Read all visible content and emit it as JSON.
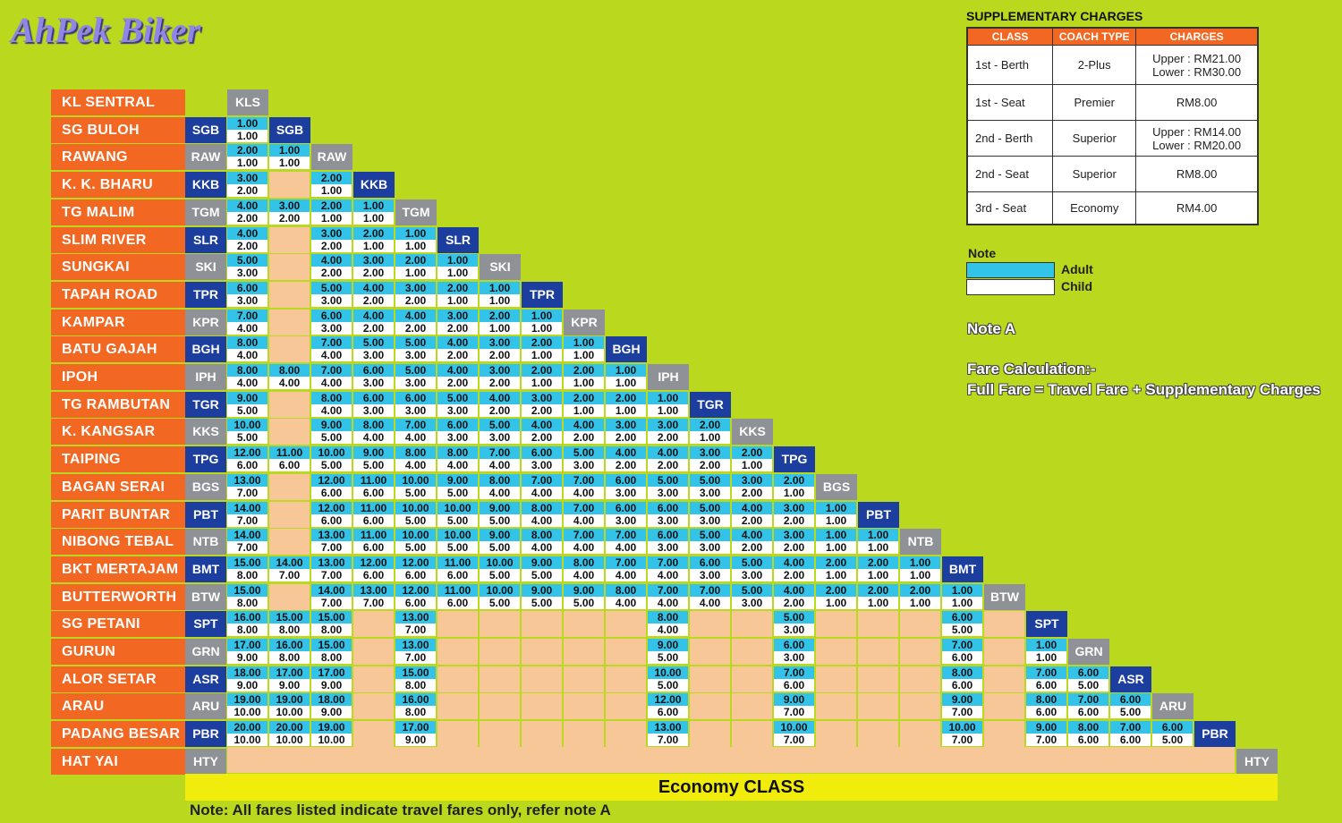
{
  "brand": "AhPek Biker",
  "stations": [
    {
      "name": "KL  SENTRAL",
      "code": "KLS"
    },
    {
      "name": "SG BULOH",
      "code": "SGB"
    },
    {
      "name": "RAWANG",
      "code": "RAW"
    },
    {
      "name": "K. K. BHARU",
      "code": "KKB"
    },
    {
      "name": "TG MALIM",
      "code": "TGM"
    },
    {
      "name": "SLIM RIVER",
      "code": "SLR"
    },
    {
      "name": "SUNGKAI",
      "code": "SKI"
    },
    {
      "name": "TAPAH ROAD",
      "code": "TPR"
    },
    {
      "name": "KAMPAR",
      "code": "KPR"
    },
    {
      "name": "BATU GAJAH",
      "code": "BGH"
    },
    {
      "name": "IPOH",
      "code": "IPH"
    },
    {
      "name": "TG RAMBUTAN",
      "code": "TGR"
    },
    {
      "name": "K. KANGSAR",
      "code": "KKS"
    },
    {
      "name": "TAIPING",
      "code": "TPG"
    },
    {
      "name": "BAGAN SERAI",
      "code": "BGS"
    },
    {
      "name": "PARIT BUNTAR",
      "code": "PBT"
    },
    {
      "name": "NIBONG TEBAL",
      "code": "NTB"
    },
    {
      "name": "BKT MERTAJAM",
      "code": "BMT"
    },
    {
      "name": "BUTTERWORTH",
      "code": "BTW"
    },
    {
      "name": "SG PETANI",
      "code": "SPT"
    },
    {
      "name": "GURUN",
      "code": "GRN"
    },
    {
      "name": "ALOR SETAR",
      "code": "ASR"
    },
    {
      "name": "ARAU",
      "code": "ARU"
    },
    {
      "name": "PADANG BESAR",
      "code": "PBR"
    },
    {
      "name": "HAT YAI",
      "code": "HTY"
    }
  ],
  "fares": [
    [],
    [
      [
        "1.00",
        "1.00"
      ]
    ],
    [
      [
        "2.00",
        "1.00"
      ],
      [
        "1.00",
        "1.00"
      ]
    ],
    [
      [
        "3.00",
        "2.00"
      ],
      null,
      [
        "2.00",
        "1.00"
      ]
    ],
    [
      [
        "4.00",
        "2.00"
      ],
      [
        "3.00",
        "2.00"
      ],
      [
        "2.00",
        "1.00"
      ],
      [
        "1.00",
        "1.00"
      ]
    ],
    [
      [
        "4.00",
        "2.00"
      ],
      null,
      [
        "3.00",
        "2.00"
      ],
      [
        "2.00",
        "1.00"
      ],
      [
        "1.00",
        "1.00"
      ]
    ],
    [
      [
        "5.00",
        "3.00"
      ],
      null,
      [
        "4.00",
        "2.00"
      ],
      [
        "3.00",
        "2.00"
      ],
      [
        "2.00",
        "1.00"
      ],
      [
        "1.00",
        "1.00"
      ]
    ],
    [
      [
        "6.00",
        "3.00"
      ],
      null,
      [
        "5.00",
        "3.00"
      ],
      [
        "4.00",
        "2.00"
      ],
      [
        "3.00",
        "2.00"
      ],
      [
        "2.00",
        "1.00"
      ],
      [
        "1.00",
        "1.00"
      ]
    ],
    [
      [
        "7.00",
        "4.00"
      ],
      null,
      [
        "6.00",
        "3.00"
      ],
      [
        "4.00",
        "2.00"
      ],
      [
        "4.00",
        "2.00"
      ],
      [
        "3.00",
        "2.00"
      ],
      [
        "2.00",
        "1.00"
      ],
      [
        "1.00",
        "1.00"
      ]
    ],
    [
      [
        "8.00",
        "4.00"
      ],
      null,
      [
        "7.00",
        "4.00"
      ],
      [
        "5.00",
        "3.00"
      ],
      [
        "5.00",
        "3.00"
      ],
      [
        "4.00",
        "2.00"
      ],
      [
        "3.00",
        "2.00"
      ],
      [
        "2.00",
        "1.00"
      ],
      [
        "1.00",
        "1.00"
      ]
    ],
    [
      [
        "8.00",
        "4.00"
      ],
      [
        "8.00",
        "4.00"
      ],
      [
        "7.00",
        "4.00"
      ],
      [
        "6.00",
        "3.00"
      ],
      [
        "5.00",
        "3.00"
      ],
      [
        "4.00",
        "2.00"
      ],
      [
        "3.00",
        "2.00"
      ],
      [
        "2.00",
        "1.00"
      ],
      [
        "2.00",
        "1.00"
      ],
      [
        "1.00",
        "1.00"
      ]
    ],
    [
      [
        "9.00",
        "5.00"
      ],
      null,
      [
        "8.00",
        "4.00"
      ],
      [
        "6.00",
        "3.00"
      ],
      [
        "6.00",
        "3.00"
      ],
      [
        "5.00",
        "3.00"
      ],
      [
        "4.00",
        "2.00"
      ],
      [
        "3.00",
        "2.00"
      ],
      [
        "2.00",
        "1.00"
      ],
      [
        "2.00",
        "1.00"
      ],
      [
        "1.00",
        "1.00"
      ]
    ],
    [
      [
        "10.00",
        "5.00"
      ],
      null,
      [
        "9.00",
        "5.00"
      ],
      [
        "8.00",
        "4.00"
      ],
      [
        "7.00",
        "4.00"
      ],
      [
        "6.00",
        "3.00"
      ],
      [
        "5.00",
        "3.00"
      ],
      [
        "4.00",
        "2.00"
      ],
      [
        "4.00",
        "2.00"
      ],
      [
        "3.00",
        "2.00"
      ],
      [
        "3.00",
        "2.00"
      ],
      [
        "2.00",
        "1.00"
      ]
    ],
    [
      [
        "12.00",
        "6.00"
      ],
      [
        "11.00",
        "6.00"
      ],
      [
        "10.00",
        "5.00"
      ],
      [
        "9.00",
        "5.00"
      ],
      [
        "8.00",
        "4.00"
      ],
      [
        "8.00",
        "4.00"
      ],
      [
        "7.00",
        "4.00"
      ],
      [
        "6.00",
        "3.00"
      ],
      [
        "5.00",
        "3.00"
      ],
      [
        "4.00",
        "2.00"
      ],
      [
        "4.00",
        "2.00"
      ],
      [
        "3.00",
        "2.00"
      ],
      [
        "2.00",
        "1.00"
      ]
    ],
    [
      [
        "13.00",
        "7.00"
      ],
      null,
      [
        "12.00",
        "6.00"
      ],
      [
        "11.00",
        "6.00"
      ],
      [
        "10.00",
        "5.00"
      ],
      [
        "9.00",
        "5.00"
      ],
      [
        "8.00",
        "4.00"
      ],
      [
        "7.00",
        "4.00"
      ],
      [
        "7.00",
        "4.00"
      ],
      [
        "6.00",
        "3.00"
      ],
      [
        "5.00",
        "3.00"
      ],
      [
        "5.00",
        "3.00"
      ],
      [
        "3.00",
        "2.00"
      ],
      [
        "2.00",
        "1.00"
      ]
    ],
    [
      [
        "14.00",
        "7.00"
      ],
      null,
      [
        "12.00",
        "6.00"
      ],
      [
        "11.00",
        "6.00"
      ],
      [
        "10.00",
        "5.00"
      ],
      [
        "10.00",
        "5.00"
      ],
      [
        "9.00",
        "5.00"
      ],
      [
        "8.00",
        "4.00"
      ],
      [
        "7.00",
        "4.00"
      ],
      [
        "6.00",
        "3.00"
      ],
      [
        "6.00",
        "3.00"
      ],
      [
        "5.00",
        "3.00"
      ],
      [
        "4.00",
        "2.00"
      ],
      [
        "3.00",
        "2.00"
      ],
      [
        "1.00",
        "1.00"
      ]
    ],
    [
      [
        "14.00",
        "7.00"
      ],
      null,
      [
        "13.00",
        "7.00"
      ],
      [
        "11.00",
        "6.00"
      ],
      [
        "10.00",
        "5.00"
      ],
      [
        "10.00",
        "5.00"
      ],
      [
        "9.00",
        "5.00"
      ],
      [
        "8.00",
        "4.00"
      ],
      [
        "7.00",
        "4.00"
      ],
      [
        "7.00",
        "4.00"
      ],
      [
        "6.00",
        "3.00"
      ],
      [
        "5.00",
        "3.00"
      ],
      [
        "4.00",
        "2.00"
      ],
      [
        "3.00",
        "2.00"
      ],
      [
        "1.00",
        "1.00"
      ],
      [
        "1.00",
        "1.00"
      ]
    ],
    [
      [
        "15.00",
        "8.00"
      ],
      [
        "14.00",
        "7.00"
      ],
      [
        "13.00",
        "7.00"
      ],
      [
        "12.00",
        "6.00"
      ],
      [
        "12.00",
        "6.00"
      ],
      [
        "11.00",
        "6.00"
      ],
      [
        "10.00",
        "5.00"
      ],
      [
        "9.00",
        "5.00"
      ],
      [
        "8.00",
        "4.00"
      ],
      [
        "7.00",
        "4.00"
      ],
      [
        "7.00",
        "4.00"
      ],
      [
        "6.00",
        "3.00"
      ],
      [
        "5.00",
        "3.00"
      ],
      [
        "4.00",
        "2.00"
      ],
      [
        "2.00",
        "1.00"
      ],
      [
        "2.00",
        "1.00"
      ],
      [
        "1.00",
        "1.00"
      ]
    ],
    [
      [
        "15.00",
        "8.00"
      ],
      null,
      [
        "14.00",
        "7.00"
      ],
      [
        "13.00",
        "7.00"
      ],
      [
        "12.00",
        "6.00"
      ],
      [
        "11.00",
        "6.00"
      ],
      [
        "10.00",
        "5.00"
      ],
      [
        "9.00",
        "5.00"
      ],
      [
        "9.00",
        "5.00"
      ],
      [
        "8.00",
        "4.00"
      ],
      [
        "7.00",
        "4.00"
      ],
      [
        "7.00",
        "4.00"
      ],
      [
        "5.00",
        "3.00"
      ],
      [
        "4.00",
        "2.00"
      ],
      [
        "2.00",
        "1.00"
      ],
      [
        "2.00",
        "1.00"
      ],
      [
        "2.00",
        "1.00"
      ],
      [
        "1.00",
        "1.00"
      ]
    ],
    [
      [
        "16.00",
        "8.00"
      ],
      [
        "15.00",
        "8.00"
      ],
      [
        "15.00",
        "8.00"
      ],
      null,
      [
        "13.00",
        "7.00"
      ],
      null,
      null,
      null,
      null,
      null,
      [
        "8.00",
        "4.00"
      ],
      null,
      null,
      [
        "5.00",
        "3.00"
      ],
      null,
      null,
      null,
      [
        "6.00",
        "5.00"
      ],
      null
    ],
    [
      [
        "17.00",
        "9.00"
      ],
      [
        "16.00",
        "8.00"
      ],
      [
        "15.00",
        "8.00"
      ],
      null,
      [
        "13.00",
        "7.00"
      ],
      null,
      null,
      null,
      null,
      null,
      [
        "9.00",
        "5.00"
      ],
      null,
      null,
      [
        "6.00",
        "3.00"
      ],
      null,
      null,
      null,
      [
        "7.00",
        "6.00"
      ],
      null,
      [
        "1.00",
        "1.00"
      ]
    ],
    [
      [
        "18.00",
        "9.00"
      ],
      [
        "17.00",
        "9.00"
      ],
      [
        "17.00",
        "9.00"
      ],
      null,
      [
        "15.00",
        "8.00"
      ],
      null,
      null,
      null,
      null,
      null,
      [
        "10.00",
        "5.00"
      ],
      null,
      null,
      [
        "7.00",
        "6.00"
      ],
      null,
      null,
      null,
      [
        "8.00",
        "6.00"
      ],
      null,
      [
        "7.00",
        "6.00"
      ],
      [
        "6.00",
        "5.00"
      ]
    ],
    [
      [
        "19.00",
        "10.00"
      ],
      [
        "19.00",
        "10.00"
      ],
      [
        "18.00",
        "9.00"
      ],
      null,
      [
        "16.00",
        "8.00"
      ],
      null,
      null,
      null,
      null,
      null,
      [
        "12.00",
        "6.00"
      ],
      null,
      null,
      [
        "9.00",
        "7.00"
      ],
      null,
      null,
      null,
      [
        "9.00",
        "7.00"
      ],
      null,
      [
        "8.00",
        "6.00"
      ],
      [
        "7.00",
        "6.00"
      ],
      [
        "6.00",
        "5.00"
      ]
    ],
    [
      [
        "20.00",
        "10.00"
      ],
      [
        "20.00",
        "10.00"
      ],
      [
        "19.00",
        "10.00"
      ],
      null,
      [
        "17.00",
        "9.00"
      ],
      null,
      null,
      null,
      null,
      null,
      [
        "13.00",
        "7.00"
      ],
      null,
      null,
      [
        "10.00",
        "7.00"
      ],
      null,
      null,
      null,
      [
        "10.00",
        "7.00"
      ],
      null,
      [
        "9.00",
        "7.00"
      ],
      [
        "8.00",
        "6.00"
      ],
      [
        "7.00",
        "6.00"
      ],
      [
        "6.00",
        "5.00"
      ]
    ],
    []
  ],
  "supplementary": {
    "title": "SUPPLEMENTARY CHARGES",
    "headers": [
      "CLASS",
      "COACH TYPE",
      "CHARGES"
    ],
    "rows": [
      {
        "cls": "1st - Berth",
        "coach": "2-Plus",
        "charge": "Upper : RM21.00",
        "charge2": "Lower : RM30.00"
      },
      {
        "cls": "1st - Seat",
        "coach": "Premier",
        "charge": "RM8.00",
        "charge2": ""
      },
      {
        "cls": "2nd -  Berth",
        "coach": "Superior",
        "charge": "Upper : RM14.00",
        "charge2": "Lower : RM20.00"
      },
      {
        "cls": "2nd -  Seat",
        "coach": "Superior",
        "charge": "RM8.00",
        "charge2": ""
      },
      {
        "cls": "3rd -  Seat",
        "coach": "Economy",
        "charge": "RM4.00",
        "charge2": ""
      }
    ]
  },
  "legend": {
    "title": "Note",
    "adult": "Adult",
    "child": "Child",
    "adult_color": "#33c2e8",
    "child_color": "#ffffff"
  },
  "note_a": "Note A",
  "fare_calc_title": "Fare Calculation:-",
  "fare_calc_formula": "Full Fare = Travel Fare + Supplementary Charges",
  "class_banner": "Economy CLASS",
  "footer_note": "Note: All fares listed indicate travel fares only, refer note A",
  "colors": {
    "background": "#b9d81e",
    "station": "#f26722",
    "code_blue": "#1c3e9e",
    "code_grey": "#8e9196",
    "adult": "#33c2e8",
    "empty": "#f7c797",
    "banner": "#f2ec0d"
  }
}
